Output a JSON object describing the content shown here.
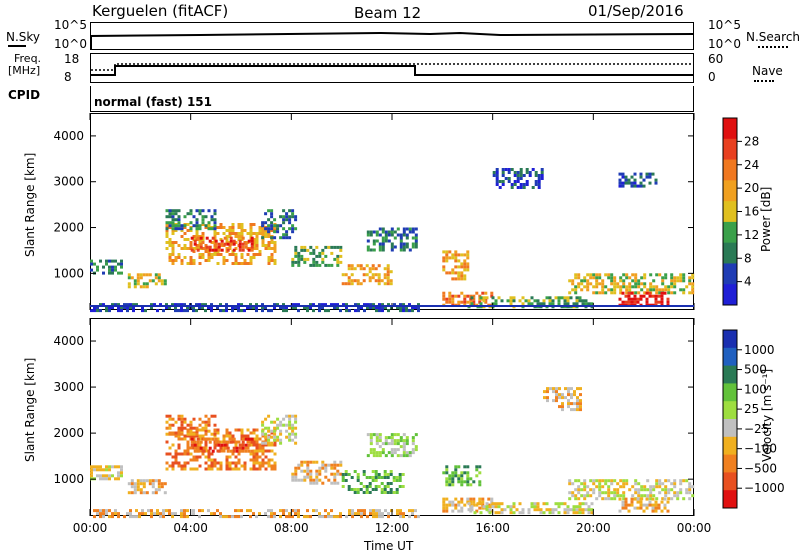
{
  "header": {
    "station": "Kerguelen (fitACF)",
    "beam": "Beam 12",
    "date": "01/Sep/2016"
  },
  "side_labels": {
    "nsky": "N.Sky",
    "nsearch": "N.Search",
    "freq_line1": "Freq.",
    "freq_line2": "[MHz]",
    "nave": "Nave",
    "cpid": "CPID",
    "cpid_value": "normal (fast) 151"
  },
  "noise_axes": {
    "left_top": "10^5",
    "left_bottom": "10^0",
    "right_top": "10^5",
    "right_bottom": "10^0"
  },
  "freq_axes": {
    "left_top": "18",
    "left_bottom": "8",
    "right_top": "60",
    "right_bottom": "0"
  },
  "colors": {
    "power_scale": [
      "#1f1fd6",
      "#1f3cb4",
      "#2a7a55",
      "#3aa04a",
      "#e0c020",
      "#f0a020",
      "#f07820",
      "#e84020",
      "#e01010"
    ],
    "velocity_scale": [
      "#1a2fb0",
      "#2060c0",
      "#2a7a55",
      "#62c23a",
      "#9ede40",
      "#c0c0c0",
      "#f0b020",
      "#f08020",
      "#e85020",
      "#e01010"
    ]
  },
  "chart_data": [
    {
      "type": "heatmap",
      "title": "Power",
      "ylabel": "Slant Range [km]",
      "y_ticks": [
        "1000",
        "2000",
        "3000",
        "4000"
      ],
      "ylim": [
        200,
        4500
      ],
      "colorbar_label": "Power [dB]",
      "colorbar_ticks": [
        "4",
        "8",
        "12",
        "16",
        "20",
        "24",
        "28"
      ],
      "patches": [
        {
          "t0": 0.0,
          "t1": 1.3,
          "r0": 1000,
          "r1": 1300,
          "level": 2
        },
        {
          "t0": 1.5,
          "t1": 3.0,
          "r0": 700,
          "r1": 1000,
          "level": 4
        },
        {
          "t0": 3.0,
          "t1": 7.3,
          "r0": 1200,
          "r1": 2100,
          "level": 5
        },
        {
          "t0": 4.0,
          "t1": 6.5,
          "r0": 1500,
          "r1": 1800,
          "level": 7
        },
        {
          "t0": 3.0,
          "t1": 5.0,
          "r0": 2000,
          "r1": 2400,
          "level": 2
        },
        {
          "t0": 6.8,
          "t1": 8.2,
          "r0": 1800,
          "r1": 2400,
          "level": 2
        },
        {
          "t0": 8.0,
          "t1": 10.0,
          "r0": 1200,
          "r1": 1600,
          "level": 3
        },
        {
          "t0": 10.0,
          "t1": 12.0,
          "r0": 800,
          "r1": 1200,
          "level": 5
        },
        {
          "t0": 11.0,
          "t1": 13.0,
          "r0": 1500,
          "r1": 2000,
          "level": 2
        },
        {
          "t0": 14.0,
          "t1": 15.0,
          "r0": 900,
          "r1": 1500,
          "level": 5
        },
        {
          "t0": 14.0,
          "t1": 16.0,
          "r0": 300,
          "r1": 600,
          "level": 6
        },
        {
          "t0": 15.0,
          "t1": 20.0,
          "r0": 300,
          "r1": 500,
          "level": 3
        },
        {
          "t0": 19.0,
          "t1": 24.0,
          "r0": 600,
          "r1": 1000,
          "level": 4
        },
        {
          "t0": 21.0,
          "t1": 23.0,
          "r0": 300,
          "r1": 600,
          "level": 8
        },
        {
          "t0": 0.0,
          "t1": 13.0,
          "r0": 200,
          "r1": 350,
          "level": 1
        },
        {
          "t0": 16.0,
          "t1": 18.0,
          "r0": 2900,
          "r1": 3300,
          "level": 1
        },
        {
          "t0": 21.0,
          "t1": 22.5,
          "r0": 2900,
          "r1": 3200,
          "level": 1
        }
      ]
    },
    {
      "type": "heatmap",
      "title": "Velocity",
      "ylabel": "Slant Range [km]",
      "xlabel": "Time UT",
      "x_ticks": [
        "00:00",
        "04:00",
        "08:00",
        "12:00",
        "16:00",
        "20:00",
        "00:00"
      ],
      "xlim": [
        0,
        24
      ],
      "y_ticks": [
        "1000",
        "2000",
        "3000",
        "4000"
      ],
      "ylim": [
        200,
        4500
      ],
      "colorbar_label": "Velocity [m s⁻¹]",
      "colorbar_ticks": [
        "1000",
        "500",
        "100",
        "25",
        "−25",
        "−100",
        "−500",
        "−1000"
      ],
      "patches": [
        {
          "t0": 0.0,
          "t1": 1.3,
          "r0": 1000,
          "r1": 1300,
          "level": 5
        },
        {
          "t0": 1.5,
          "t1": 3.0,
          "r0": 700,
          "r1": 1000,
          "level": 6
        },
        {
          "t0": 3.0,
          "t1": 7.3,
          "r0": 1200,
          "r1": 2100,
          "level": 7
        },
        {
          "t0": 4.0,
          "t1": 6.5,
          "r0": 1600,
          "r1": 1900,
          "level": 8
        },
        {
          "t0": 3.0,
          "t1": 5.0,
          "r0": 2000,
          "r1": 2400,
          "level": 7
        },
        {
          "t0": 6.8,
          "t1": 8.2,
          "r0": 1800,
          "r1": 2400,
          "level": 5
        },
        {
          "t0": 8.0,
          "t1": 10.0,
          "r0": 900,
          "r1": 1400,
          "level": 6
        },
        {
          "t0": 10.0,
          "t1": 12.5,
          "r0": 700,
          "r1": 1200,
          "level": 3
        },
        {
          "t0": 11.0,
          "t1": 13.0,
          "r0": 1500,
          "r1": 2000,
          "level": 4
        },
        {
          "t0": 14.0,
          "t1": 15.5,
          "r0": 900,
          "r1": 1300,
          "level": 3
        },
        {
          "t0": 14.0,
          "t1": 16.0,
          "r0": 300,
          "r1": 600,
          "level": 6
        },
        {
          "t0": 15.0,
          "t1": 20.0,
          "r0": 300,
          "r1": 500,
          "level": 5
        },
        {
          "t0": 19.0,
          "t1": 24.0,
          "r0": 600,
          "r1": 1000,
          "level": 5
        },
        {
          "t0": 21.0,
          "t1": 23.0,
          "r0": 300,
          "r1": 600,
          "level": 6
        },
        {
          "t0": 0.0,
          "t1": 13.0,
          "r0": 200,
          "r1": 350,
          "level": 6
        },
        {
          "t0": 18.0,
          "t1": 19.5,
          "r0": 2500,
          "r1": 3000,
          "level": 6
        }
      ]
    }
  ]
}
